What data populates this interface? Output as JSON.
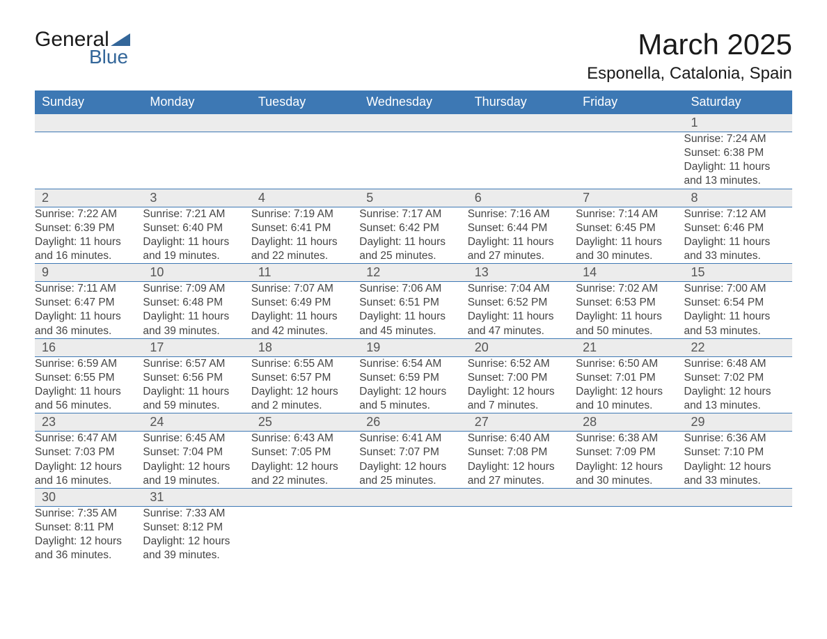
{
  "logo": {
    "text_general": "General",
    "text_blue": "Blue",
    "triangle_color": "#336699"
  },
  "title": "March 2025",
  "location": "Esponella, Catalonia, Spain",
  "day_headers": [
    "Sunday",
    "Monday",
    "Tuesday",
    "Wednesday",
    "Thursday",
    "Friday",
    "Saturday"
  ],
  "colors": {
    "header_bg": "#3d78b4",
    "header_text": "#ffffff",
    "daynum_bg": "#ececec",
    "text": "#444444",
    "border": "#3d78b4"
  },
  "weeks": [
    [
      null,
      null,
      null,
      null,
      null,
      null,
      {
        "n": "1",
        "sunrise": "Sunrise: 7:24 AM",
        "sunset": "Sunset: 6:38 PM",
        "dl1": "Daylight: 11 hours",
        "dl2": "and 13 minutes."
      }
    ],
    [
      {
        "n": "2",
        "sunrise": "Sunrise: 7:22 AM",
        "sunset": "Sunset: 6:39 PM",
        "dl1": "Daylight: 11 hours",
        "dl2": "and 16 minutes."
      },
      {
        "n": "3",
        "sunrise": "Sunrise: 7:21 AM",
        "sunset": "Sunset: 6:40 PM",
        "dl1": "Daylight: 11 hours",
        "dl2": "and 19 minutes."
      },
      {
        "n": "4",
        "sunrise": "Sunrise: 7:19 AM",
        "sunset": "Sunset: 6:41 PM",
        "dl1": "Daylight: 11 hours",
        "dl2": "and 22 minutes."
      },
      {
        "n": "5",
        "sunrise": "Sunrise: 7:17 AM",
        "sunset": "Sunset: 6:42 PM",
        "dl1": "Daylight: 11 hours",
        "dl2": "and 25 minutes."
      },
      {
        "n": "6",
        "sunrise": "Sunrise: 7:16 AM",
        "sunset": "Sunset: 6:44 PM",
        "dl1": "Daylight: 11 hours",
        "dl2": "and 27 minutes."
      },
      {
        "n": "7",
        "sunrise": "Sunrise: 7:14 AM",
        "sunset": "Sunset: 6:45 PM",
        "dl1": "Daylight: 11 hours",
        "dl2": "and 30 minutes."
      },
      {
        "n": "8",
        "sunrise": "Sunrise: 7:12 AM",
        "sunset": "Sunset: 6:46 PM",
        "dl1": "Daylight: 11 hours",
        "dl2": "and 33 minutes."
      }
    ],
    [
      {
        "n": "9",
        "sunrise": "Sunrise: 7:11 AM",
        "sunset": "Sunset: 6:47 PM",
        "dl1": "Daylight: 11 hours",
        "dl2": "and 36 minutes."
      },
      {
        "n": "10",
        "sunrise": "Sunrise: 7:09 AM",
        "sunset": "Sunset: 6:48 PM",
        "dl1": "Daylight: 11 hours",
        "dl2": "and 39 minutes."
      },
      {
        "n": "11",
        "sunrise": "Sunrise: 7:07 AM",
        "sunset": "Sunset: 6:49 PM",
        "dl1": "Daylight: 11 hours",
        "dl2": "and 42 minutes."
      },
      {
        "n": "12",
        "sunrise": "Sunrise: 7:06 AM",
        "sunset": "Sunset: 6:51 PM",
        "dl1": "Daylight: 11 hours",
        "dl2": "and 45 minutes."
      },
      {
        "n": "13",
        "sunrise": "Sunrise: 7:04 AM",
        "sunset": "Sunset: 6:52 PM",
        "dl1": "Daylight: 11 hours",
        "dl2": "and 47 minutes."
      },
      {
        "n": "14",
        "sunrise": "Sunrise: 7:02 AM",
        "sunset": "Sunset: 6:53 PM",
        "dl1": "Daylight: 11 hours",
        "dl2": "and 50 minutes."
      },
      {
        "n": "15",
        "sunrise": "Sunrise: 7:00 AM",
        "sunset": "Sunset: 6:54 PM",
        "dl1": "Daylight: 11 hours",
        "dl2": "and 53 minutes."
      }
    ],
    [
      {
        "n": "16",
        "sunrise": "Sunrise: 6:59 AM",
        "sunset": "Sunset: 6:55 PM",
        "dl1": "Daylight: 11 hours",
        "dl2": "and 56 minutes."
      },
      {
        "n": "17",
        "sunrise": "Sunrise: 6:57 AM",
        "sunset": "Sunset: 6:56 PM",
        "dl1": "Daylight: 11 hours",
        "dl2": "and 59 minutes."
      },
      {
        "n": "18",
        "sunrise": "Sunrise: 6:55 AM",
        "sunset": "Sunset: 6:57 PM",
        "dl1": "Daylight: 12 hours",
        "dl2": "and 2 minutes."
      },
      {
        "n": "19",
        "sunrise": "Sunrise: 6:54 AM",
        "sunset": "Sunset: 6:59 PM",
        "dl1": "Daylight: 12 hours",
        "dl2": "and 5 minutes."
      },
      {
        "n": "20",
        "sunrise": "Sunrise: 6:52 AM",
        "sunset": "Sunset: 7:00 PM",
        "dl1": "Daylight: 12 hours",
        "dl2": "and 7 minutes."
      },
      {
        "n": "21",
        "sunrise": "Sunrise: 6:50 AM",
        "sunset": "Sunset: 7:01 PM",
        "dl1": "Daylight: 12 hours",
        "dl2": "and 10 minutes."
      },
      {
        "n": "22",
        "sunrise": "Sunrise: 6:48 AM",
        "sunset": "Sunset: 7:02 PM",
        "dl1": "Daylight: 12 hours",
        "dl2": "and 13 minutes."
      }
    ],
    [
      {
        "n": "23",
        "sunrise": "Sunrise: 6:47 AM",
        "sunset": "Sunset: 7:03 PM",
        "dl1": "Daylight: 12 hours",
        "dl2": "and 16 minutes."
      },
      {
        "n": "24",
        "sunrise": "Sunrise: 6:45 AM",
        "sunset": "Sunset: 7:04 PM",
        "dl1": "Daylight: 12 hours",
        "dl2": "and 19 minutes."
      },
      {
        "n": "25",
        "sunrise": "Sunrise: 6:43 AM",
        "sunset": "Sunset: 7:05 PM",
        "dl1": "Daylight: 12 hours",
        "dl2": "and 22 minutes."
      },
      {
        "n": "26",
        "sunrise": "Sunrise: 6:41 AM",
        "sunset": "Sunset: 7:07 PM",
        "dl1": "Daylight: 12 hours",
        "dl2": "and 25 minutes."
      },
      {
        "n": "27",
        "sunrise": "Sunrise: 6:40 AM",
        "sunset": "Sunset: 7:08 PM",
        "dl1": "Daylight: 12 hours",
        "dl2": "and 27 minutes."
      },
      {
        "n": "28",
        "sunrise": "Sunrise: 6:38 AM",
        "sunset": "Sunset: 7:09 PM",
        "dl1": "Daylight: 12 hours",
        "dl2": "and 30 minutes."
      },
      {
        "n": "29",
        "sunrise": "Sunrise: 6:36 AM",
        "sunset": "Sunset: 7:10 PM",
        "dl1": "Daylight: 12 hours",
        "dl2": "and 33 minutes."
      }
    ],
    [
      {
        "n": "30",
        "sunrise": "Sunrise: 7:35 AM",
        "sunset": "Sunset: 8:11 PM",
        "dl1": "Daylight: 12 hours",
        "dl2": "and 36 minutes."
      },
      {
        "n": "31",
        "sunrise": "Sunrise: 7:33 AM",
        "sunset": "Sunset: 8:12 PM",
        "dl1": "Daylight: 12 hours",
        "dl2": "and 39 minutes."
      },
      null,
      null,
      null,
      null,
      null
    ]
  ]
}
